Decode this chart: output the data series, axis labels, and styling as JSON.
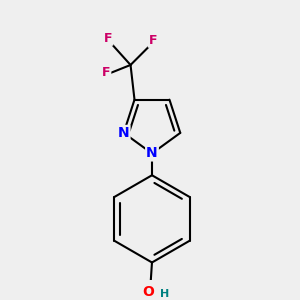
{
  "bg_color": "#efefef",
  "bond_color": "#000000",
  "bond_width": 1.5,
  "N_color": "#0000ff",
  "O_color": "#ff0000",
  "F_color": "#cc0066",
  "H_color": "#008080",
  "font_size_N": 10,
  "font_size_F": 9,
  "font_size_O": 10,
  "font_size_H": 8,
  "fig_width": 3.0,
  "fig_height": 3.0,
  "dpi": 100,
  "xlim": [
    -0.65,
    0.85
  ],
  "ylim": [
    -1.9,
    0.9
  ]
}
